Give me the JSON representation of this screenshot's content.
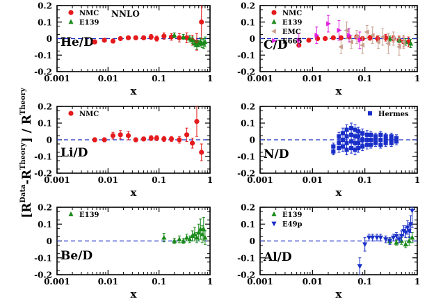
{
  "figure": {
    "ylabel": {
      "open": "[R",
      "data": "Data",
      "mid1": "-R",
      "theory1": "Theory",
      "mid2": "] / R",
      "theory2": "Theory"
    }
  },
  "colors": {
    "red": "#e41a1c",
    "green": "#1a8a1a",
    "blue": "#1a2fc8",
    "tan": "#c8a090",
    "magenta": "#e020e0",
    "dashed": "#1a2fc8"
  },
  "chart_data": [
    {
      "type": "scatter",
      "label": "He/D",
      "annotation": "NNLO",
      "xscale": "log",
      "xlim": [
        0.001,
        1
      ],
      "ylim": [
        -0.2,
        0.2
      ],
      "xlabel": "x",
      "xticks": [
        "0.001",
        "0.01",
        "0.1",
        "1"
      ],
      "yticks": [
        "0.2",
        "0.1",
        "0",
        "-0.1",
        "-0.2"
      ],
      "reference_line": 0,
      "series": [
        {
          "name": "NMC",
          "marker": "circle",
          "color": "#e41a1c",
          "x": [
            0.0055,
            0.0085,
            0.0125,
            0.0175,
            0.025,
            0.035,
            0.05,
            0.07,
            0.09,
            0.125,
            0.175,
            0.25,
            0.35,
            0.45,
            0.55,
            0.68
          ],
          "y": [
            -0.02,
            -0.01,
            -0.015,
            0.0,
            0.005,
            0.005,
            0.005,
            0.01,
            0.0,
            0.015,
            0.01,
            0.005,
            0.005,
            -0.01,
            -0.02,
            0.1
          ],
          "err": [
            0.012,
            0.01,
            0.012,
            0.01,
            0.01,
            0.012,
            0.012,
            0.015,
            0.015,
            0.02,
            0.02,
            0.025,
            0.03,
            0.03,
            0.05,
            0.1
          ]
        },
        {
          "name": "E139",
          "marker": "triangle-up",
          "color": "#1a8a1a",
          "x": [
            0.2,
            0.3,
            0.4,
            0.45,
            0.5,
            0.55,
            0.6,
            0.65,
            0.7,
            0.75,
            0.8
          ],
          "y": [
            0.02,
            0.01,
            0.0,
            -0.01,
            -0.03,
            -0.04,
            -0.03,
            -0.02,
            -0.03,
            -0.03,
            -0.02
          ],
          "err": [
            0.015,
            0.015,
            0.02,
            0.02,
            0.02,
            0.025,
            0.02,
            0.025,
            0.025,
            0.03,
            0.03
          ]
        }
      ]
    },
    {
      "type": "scatter",
      "label": "C/D",
      "xscale": "log",
      "xlim": [
        0.001,
        1
      ],
      "ylim": [
        -0.2,
        0.2
      ],
      "xlabel": "x",
      "xticks": [
        "0.001",
        "0.01",
        "0.1",
        "1"
      ],
      "yticks": [
        "0.2",
        "0.1",
        "0",
        "-0.1",
        "-0.2"
      ],
      "reference_line": 0,
      "series": [
        {
          "name": "NMC",
          "marker": "circle",
          "color": "#e41a1c",
          "x": [
            0.0055,
            0.0085,
            0.0125,
            0.0175,
            0.025,
            0.035,
            0.05,
            0.07,
            0.09,
            0.125,
            0.175,
            0.25,
            0.35,
            0.45,
            0.55,
            0.68
          ],
          "y": [
            -0.04,
            -0.01,
            0.0,
            0.0,
            0.005,
            0.005,
            0.01,
            0.01,
            0.0,
            0.005,
            0.0,
            0.005,
            0.0,
            -0.01,
            -0.02,
            -0.02
          ],
          "err": [
            0.012,
            0.01,
            0.01,
            0.01,
            0.01,
            0.01,
            0.01,
            0.012,
            0.012,
            0.015,
            0.015,
            0.02,
            0.02,
            0.025,
            0.03,
            0.03
          ]
        },
        {
          "name": "E139",
          "marker": "triangle-up",
          "color": "#1a8a1a",
          "x": [
            0.3,
            0.45,
            0.6,
            0.75
          ],
          "y": [
            0.0,
            -0.01,
            -0.02,
            -0.03
          ],
          "err": [
            0.015,
            0.015,
            0.02,
            0.025
          ]
        },
        {
          "name": "EMC",
          "marker": "triangle-left",
          "color": "#c8a090",
          "x": [
            0.035,
            0.045,
            0.055,
            0.07,
            0.09,
            0.11,
            0.14,
            0.18,
            0.22,
            0.28,
            0.35,
            0.45,
            0.55
          ],
          "y": [
            -0.05,
            0.05,
            -0.02,
            0.01,
            -0.04,
            0.04,
            0.02,
            -0.02,
            0.01,
            -0.03,
            0.0,
            -0.05,
            -0.02
          ],
          "err": [
            0.04,
            0.05,
            0.04,
            0.04,
            0.05,
            0.04,
            0.05,
            0.04,
            0.05,
            0.06,
            0.04,
            0.05,
            0.04
          ]
        },
        {
          "name": "E665",
          "marker": "triangle-right",
          "color": "#e020e0",
          "x": [
            0.0055,
            0.012,
            0.02,
            0.032,
            0.05,
            0.08
          ],
          "y": [
            -0.01,
            0.02,
            0.09,
            0.05,
            0.02,
            -0.01
          ],
          "err": [
            0.04,
            0.05,
            0.05,
            0.06,
            0.04,
            0.05
          ]
        }
      ]
    },
    {
      "type": "scatter",
      "label": "Li/D",
      "xscale": "log",
      "xlim": [
        0.001,
        1
      ],
      "ylim": [
        -0.2,
        0.2
      ],
      "xlabel": "x",
      "xticks": [
        "0.001",
        "0.01",
        "0.1",
        "1"
      ],
      "yticks": [
        "0.2",
        "0.1",
        "0",
        "-0.1",
        "-0.2"
      ],
      "reference_line": 0,
      "series": [
        {
          "name": "NMC",
          "marker": "circle",
          "color": "#e41a1c",
          "x": [
            0.0055,
            0.0085,
            0.0125,
            0.0175,
            0.025,
            0.035,
            0.05,
            0.07,
            0.09,
            0.125,
            0.175,
            0.25,
            0.35,
            0.45,
            0.55,
            0.68
          ],
          "y": [
            0.0,
            0.0,
            0.025,
            0.03,
            0.025,
            0.0,
            0.005,
            0.01,
            0.01,
            0.005,
            0.005,
            0.0,
            0.03,
            -0.02,
            0.11,
            -0.075
          ],
          "err": [
            0.012,
            0.012,
            0.02,
            0.025,
            0.025,
            0.012,
            0.012,
            0.015,
            0.015,
            0.015,
            0.015,
            0.02,
            0.04,
            0.03,
            0.09,
            0.05
          ]
        }
      ]
    },
    {
      "type": "scatter",
      "label": "N/D",
      "xscale": "log",
      "xlim": [
        0.001,
        1
      ],
      "ylim": [
        -0.2,
        0.2
      ],
      "xlabel": "x",
      "xticks": [
        "0.001",
        "0.01",
        "0.1",
        "1"
      ],
      "yticks": [
        "0.2",
        "0.1",
        "0",
        "-0.1",
        "-0.2"
      ],
      "reference_line": 0,
      "series": [
        {
          "name": "Hermes",
          "marker": "square",
          "color": "#1a2fc8",
          "x": [
            0.025,
            0.025,
            0.032,
            0.032,
            0.032,
            0.038,
            0.038,
            0.038,
            0.045,
            0.045,
            0.045,
            0.045,
            0.055,
            0.055,
            0.055,
            0.055,
            0.065,
            0.065,
            0.065,
            0.065,
            0.075,
            0.075,
            0.075,
            0.075,
            0.09,
            0.09,
            0.09,
            0.11,
            0.11,
            0.11,
            0.13,
            0.13,
            0.13,
            0.16,
            0.16,
            0.16,
            0.2,
            0.2,
            0.2,
            0.25,
            0.25,
            0.25,
            0.32,
            0.32,
            0.32,
            0.4,
            0.4
          ],
          "y": [
            -0.04,
            -0.07,
            0.02,
            -0.02,
            -0.05,
            0.04,
            0.0,
            -0.04,
            0.06,
            0.02,
            -0.02,
            -0.06,
            0.07,
            0.03,
            -0.01,
            -0.05,
            0.06,
            0.02,
            -0.02,
            -0.06,
            0.05,
            0.02,
            -0.02,
            -0.05,
            0.04,
            0.0,
            -0.04,
            0.03,
            0.0,
            -0.03,
            0.03,
            0.0,
            -0.03,
            0.02,
            0.0,
            -0.02,
            0.03,
            0.0,
            -0.03,
            0.02,
            0.0,
            -0.02,
            0.02,
            0.0,
            -0.02,
            0.01,
            -0.01
          ],
          "err": [
            0.02,
            0.02,
            0.025,
            0.025,
            0.025,
            0.03,
            0.03,
            0.03,
            0.03,
            0.03,
            0.03,
            0.03,
            0.03,
            0.03,
            0.03,
            0.03,
            0.03,
            0.03,
            0.03,
            0.03,
            0.025,
            0.025,
            0.025,
            0.025,
            0.025,
            0.025,
            0.025,
            0.025,
            0.025,
            0.025,
            0.02,
            0.02,
            0.02,
            0.02,
            0.02,
            0.02,
            0.02,
            0.02,
            0.02,
            0.02,
            0.02,
            0.02,
            0.02,
            0.02,
            0.02,
            0.02,
            0.02
          ]
        }
      ]
    },
    {
      "type": "scatter",
      "label": "Be/D",
      "xscale": "log",
      "xlim": [
        0.001,
        1
      ],
      "ylim": [
        -0.2,
        0.2
      ],
      "xlabel": "x",
      "xticks": [
        "0.001",
        "0.01",
        "0.1",
        "1"
      ],
      "yticks": [
        "0.2",
        "0.1",
        "0",
        "-0.1",
        "-0.2"
      ],
      "reference_line": 0,
      "series": [
        {
          "name": "E139",
          "marker": "triangle-up",
          "color": "#1a8a1a",
          "x": [
            0.125,
            0.2,
            0.25,
            0.3,
            0.35,
            0.4,
            0.45,
            0.5,
            0.55,
            0.6,
            0.65,
            0.7,
            0.75,
            0.8
          ],
          "y": [
            0.02,
            0.0,
            0.01,
            0.0,
            0.02,
            0.01,
            0.03,
            0.04,
            0.02,
            0.05,
            0.07,
            0.04,
            0.07,
            0.02
          ],
          "err": [
            0.025,
            0.015,
            0.02,
            0.015,
            0.02,
            0.02,
            0.03,
            0.04,
            0.03,
            0.05,
            0.06,
            0.05,
            0.07,
            0.04
          ]
        }
      ]
    },
    {
      "type": "scatter",
      "label": "Al/D",
      "xscale": "log",
      "xlim": [
        0.001,
        1
      ],
      "ylim": [
        -0.2,
        0.2
      ],
      "xlabel": "x",
      "xticks": [
        "0.001",
        "0.01",
        "0.1",
        "1"
      ],
      "yticks": [
        "0.2",
        "0.1",
        "0",
        "-0.1",
        "-0.2"
      ],
      "reference_line": 0,
      "series": [
        {
          "name": "E139",
          "marker": "triangle-up",
          "color": "#1a8a1a",
          "x": [
            0.3,
            0.4,
            0.5,
            0.6,
            0.7,
            0.8
          ],
          "y": [
            0.0,
            -0.01,
            0.0,
            -0.02,
            0.0,
            0.02
          ],
          "err": [
            0.015,
            0.015,
            0.02,
            0.02,
            0.025,
            0.03
          ]
        },
        {
          "name": "E49p",
          "marker": "triangle-down",
          "color": "#1a2fc8",
          "x": [
            0.08,
            0.1,
            0.12,
            0.14,
            0.17,
            0.2,
            0.25,
            0.3,
            0.35,
            0.4,
            0.45,
            0.5,
            0.55,
            0.6,
            0.65,
            0.7,
            0.75,
            0.8
          ],
          "y": [
            -0.15,
            -0.02,
            0.02,
            0.02,
            0.02,
            0.02,
            0.01,
            0.0,
            0.02,
            0.03,
            0.01,
            0.03,
            0.06,
            0.05,
            0.08,
            0.06,
            0.1,
            0.18
          ],
          "err": [
            0.05,
            0.04,
            0.02,
            0.02,
            0.02,
            0.02,
            0.02,
            0.02,
            0.02,
            0.02,
            0.02,
            0.03,
            0.03,
            0.03,
            0.04,
            0.04,
            0.05,
            0.1
          ]
        }
      ]
    }
  ]
}
